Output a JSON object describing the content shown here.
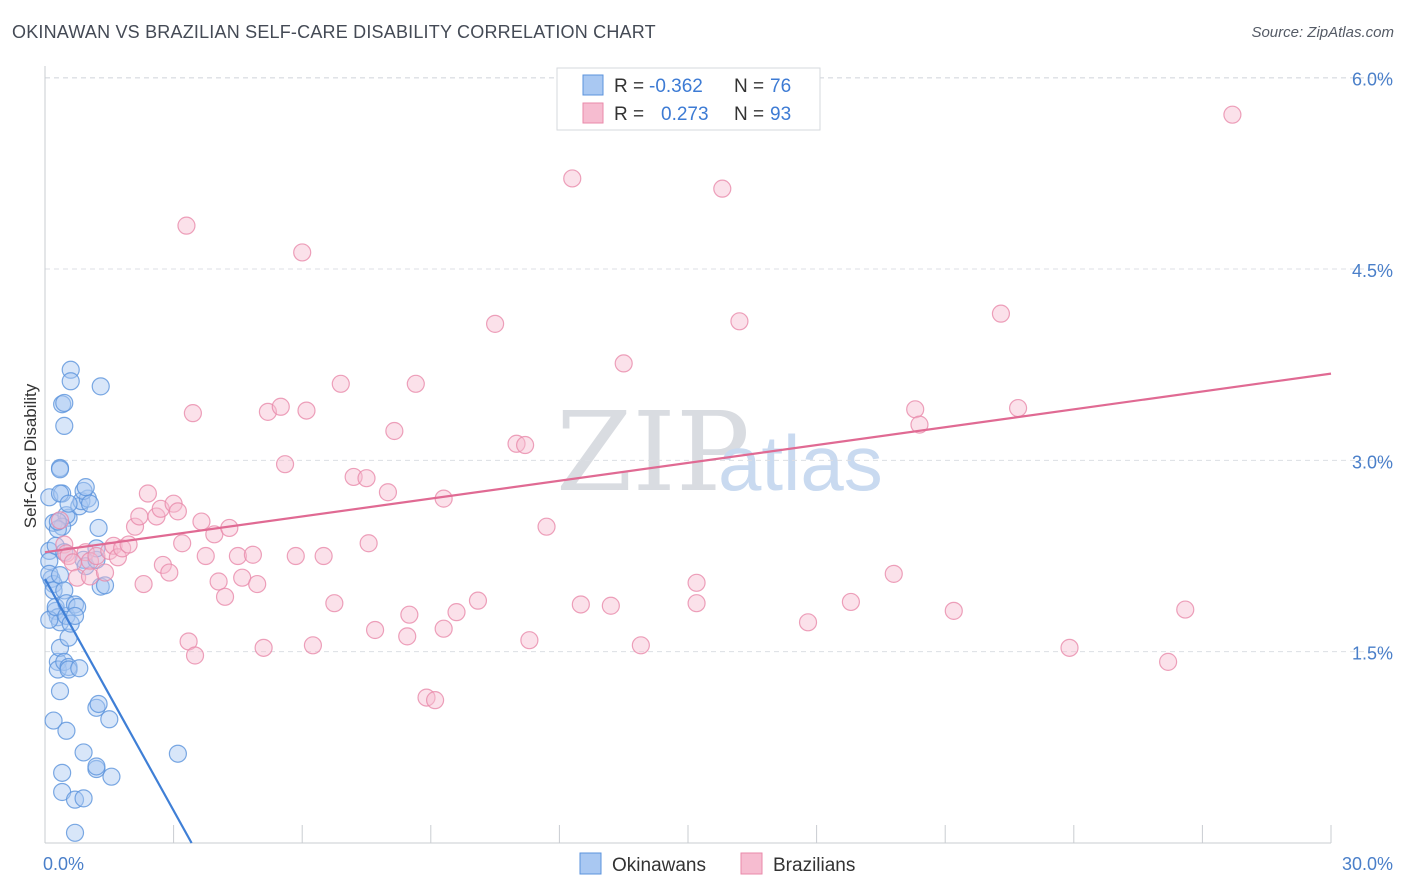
{
  "title": "OKINAWAN VS BRAZILIAN SELF-CARE DISABILITY CORRELATION CHART",
  "source": "Source: ZipAtlas.com",
  "watermark": {
    "zip": "ZIP",
    "atlas": "atlas"
  },
  "colors": {
    "okinawans_fill": "#a9c8f2",
    "okinawans_stroke": "#5b93dc",
    "okinawans_line": "#3f7fd6",
    "brazilians_fill": "#f6bcd0",
    "brazilians_stroke": "#e98aaa",
    "brazilians_line": "#e06a93",
    "tick_text": "#4a7fc9",
    "grid": "#dcdfe4"
  },
  "legend": {
    "rows": [
      {
        "r_label": "R =",
        "r_value": "-0.362",
        "n_label": "N =",
        "n_value": "76"
      },
      {
        "r_label": "R =",
        "r_value": "0.273",
        "n_label": "N =",
        "n_value": "93"
      }
    ]
  },
  "chart_data": {
    "type": "scatter",
    "title": "OKINAWAN VS BRAZILIAN SELF-CARE DISABILITY CORRELATION CHART",
    "xlabel": "",
    "ylabel": "Self-Care Disability",
    "xlim": [
      0,
      30
    ],
    "ylim": [
      0,
      6.2
    ],
    "x_tick_labels": [
      "0.0%",
      "30.0%"
    ],
    "y_ticks": [
      1.5,
      3.0,
      4.5,
      6.0
    ],
    "y_tick_labels": [
      "1.5%",
      "3.0%",
      "4.5%",
      "6.0%"
    ],
    "legend_position": "bottom-center",
    "series": [
      {
        "name": "Okinawans",
        "r": -0.362,
        "n": 76,
        "trend": {
          "x": [
            0,
            3.42
          ],
          "y": [
            2.07,
            0.0
          ]
        },
        "points": [
          [
            0.1,
            2.71
          ],
          [
            0.2,
            2.51
          ],
          [
            0.1,
            2.29
          ],
          [
            0.1,
            2.21
          ],
          [
            0.15,
            2.07
          ],
          [
            0.2,
            2.03
          ],
          [
            0.1,
            2.11
          ],
          [
            0.2,
            1.98
          ],
          [
            0.25,
            1.82
          ],
          [
            0.3,
            1.77
          ],
          [
            0.35,
            1.73
          ],
          [
            0.1,
            1.75
          ],
          [
            0.3,
            1.42
          ],
          [
            0.3,
            1.36
          ],
          [
            0.35,
            1.53
          ],
          [
            0.35,
            1.19
          ],
          [
            0.25,
            1.85
          ],
          [
            0.5,
            1.78
          ],
          [
            0.45,
            1.42
          ],
          [
            0.55,
            1.38
          ],
          [
            0.6,
            3.71
          ],
          [
            0.6,
            3.62
          ],
          [
            0.4,
            3.44
          ],
          [
            0.45,
            3.45
          ],
          [
            0.45,
            3.27
          ],
          [
            0.35,
            2.94
          ],
          [
            0.35,
            2.93
          ],
          [
            0.4,
            2.74
          ],
          [
            0.35,
            2.74
          ],
          [
            0.55,
            2.55
          ],
          [
            0.5,
            2.57
          ],
          [
            0.4,
            2.48
          ],
          [
            0.3,
            2.46
          ],
          [
            0.3,
            2.52
          ],
          [
            0.25,
            2.33
          ],
          [
            0.45,
            2.28
          ],
          [
            0.35,
            2.1
          ],
          [
            0.45,
            1.98
          ],
          [
            0.5,
            1.88
          ],
          [
            0.55,
            1.61
          ],
          [
            0.6,
            1.72
          ],
          [
            0.55,
            1.36
          ],
          [
            0.7,
            1.87
          ],
          [
            0.75,
            1.85
          ],
          [
            0.7,
            1.78
          ],
          [
            0.8,
            1.37
          ],
          [
            0.8,
            2.64
          ],
          [
            0.9,
            2.22
          ],
          [
            0.95,
            2.17
          ],
          [
            0.85,
            2.68
          ],
          [
            1.0,
            2.7
          ],
          [
            0.9,
            2.76
          ],
          [
            0.95,
            2.79
          ],
          [
            1.05,
            2.66
          ],
          [
            1.2,
            2.22
          ],
          [
            1.25,
            2.47
          ],
          [
            1.2,
            2.31
          ],
          [
            1.3,
            2.01
          ],
          [
            1.4,
            2.02
          ],
          [
            0.2,
            0.96
          ],
          [
            0.5,
            0.88
          ],
          [
            0.4,
            0.55
          ],
          [
            0.4,
            0.4
          ],
          [
            0.7,
            0.34
          ],
          [
            0.9,
            0.35
          ],
          [
            0.7,
            0.08
          ],
          [
            0.9,
            0.71
          ],
          [
            1.2,
            0.58
          ],
          [
            1.2,
            0.6
          ],
          [
            1.55,
            0.52
          ],
          [
            1.2,
            1.06
          ],
          [
            1.25,
            1.09
          ],
          [
            1.5,
            0.97
          ],
          [
            1.3,
            3.58
          ],
          [
            3.1,
            0.7
          ],
          [
            0.55,
            2.66
          ]
        ]
      },
      {
        "name": "Brazilians",
        "r": 0.273,
        "n": 93,
        "trend": {
          "x": [
            0,
            30
          ],
          "y": [
            2.28,
            3.68
          ]
        },
        "points": [
          [
            0.35,
            2.53
          ],
          [
            0.45,
            2.34
          ],
          [
            0.5,
            2.27
          ],
          [
            0.55,
            2.25
          ],
          [
            0.65,
            2.2
          ],
          [
            0.75,
            2.08
          ],
          [
            0.95,
            2.28
          ],
          [
            1.05,
            2.21
          ],
          [
            1.05,
            2.09
          ],
          [
            1.2,
            2.25
          ],
          [
            1.4,
            2.12
          ],
          [
            1.5,
            2.29
          ],
          [
            1.6,
            2.33
          ],
          [
            1.7,
            2.24
          ],
          [
            1.8,
            2.31
          ],
          [
            1.95,
            2.34
          ],
          [
            2.1,
            2.48
          ],
          [
            2.2,
            2.56
          ],
          [
            2.3,
            2.03
          ],
          [
            2.4,
            2.74
          ],
          [
            2.6,
            2.56
          ],
          [
            2.7,
            2.62
          ],
          [
            2.75,
            2.18
          ],
          [
            2.9,
            2.12
          ],
          [
            3.0,
            2.66
          ],
          [
            3.1,
            2.6
          ],
          [
            3.2,
            2.35
          ],
          [
            3.35,
            1.58
          ],
          [
            3.5,
            1.47
          ],
          [
            3.3,
            4.84
          ],
          [
            3.45,
            3.37
          ],
          [
            3.65,
            2.52
          ],
          [
            3.75,
            2.25
          ],
          [
            3.95,
            2.42
          ],
          [
            4.05,
            2.05
          ],
          [
            4.2,
            1.93
          ],
          [
            4.3,
            2.47
          ],
          [
            4.5,
            2.25
          ],
          [
            4.6,
            2.08
          ],
          [
            4.85,
            2.26
          ],
          [
            4.95,
            2.03
          ],
          [
            5.1,
            1.53
          ],
          [
            5.2,
            3.38
          ],
          [
            5.5,
            3.42
          ],
          [
            5.6,
            2.97
          ],
          [
            5.85,
            2.25
          ],
          [
            6.0,
            4.63
          ],
          [
            6.1,
            3.39
          ],
          [
            6.25,
            1.55
          ],
          [
            6.5,
            2.25
          ],
          [
            6.75,
            1.88
          ],
          [
            6.9,
            3.6
          ],
          [
            7.2,
            2.87
          ],
          [
            7.5,
            2.86
          ],
          [
            7.55,
            2.35
          ],
          [
            7.7,
            1.67
          ],
          [
            8.0,
            2.75
          ],
          [
            8.15,
            3.23
          ],
          [
            8.45,
            1.62
          ],
          [
            8.5,
            1.79
          ],
          [
            8.65,
            3.6
          ],
          [
            8.9,
            1.14
          ],
          [
            9.1,
            1.12
          ],
          [
            9.3,
            1.68
          ],
          [
            9.3,
            2.7
          ],
          [
            9.6,
            1.81
          ],
          [
            10.1,
            1.9
          ],
          [
            10.5,
            4.07
          ],
          [
            11.0,
            3.13
          ],
          [
            11.2,
            3.12
          ],
          [
            11.7,
            2.48
          ],
          [
            11.3,
            1.59
          ],
          [
            12.3,
            5.21
          ],
          [
            12.5,
            1.87
          ],
          [
            13.2,
            1.86
          ],
          [
            13.5,
            3.76
          ],
          [
            13.9,
            1.55
          ],
          [
            15.2,
            2.04
          ],
          [
            15.2,
            1.88
          ],
          [
            15.8,
            5.13
          ],
          [
            16.2,
            4.09
          ],
          [
            17.8,
            1.73
          ],
          [
            18.8,
            1.89
          ],
          [
            19.8,
            2.11
          ],
          [
            20.3,
            3.4
          ],
          [
            20.4,
            3.28
          ],
          [
            21.2,
            1.82
          ],
          [
            22.3,
            4.15
          ],
          [
            22.7,
            3.41
          ],
          [
            23.9,
            1.53
          ],
          [
            26.2,
            1.42
          ],
          [
            26.6,
            1.83
          ],
          [
            27.7,
            5.71
          ]
        ]
      }
    ]
  }
}
